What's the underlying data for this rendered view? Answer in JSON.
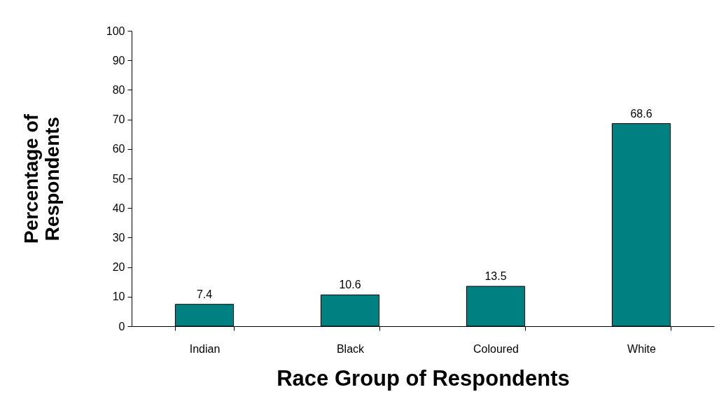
{
  "chart_data": {
    "type": "bar",
    "xlabel": "Race Group of Respondents",
    "ylabel": "Percentage of\nRespondents",
    "categories": [
      "Indian",
      "Black",
      "Coloured",
      "White"
    ],
    "values": [
      7.4,
      10.6,
      13.5,
      68.6
    ],
    "color": "#008080",
    "ylim": [
      0,
      100
    ],
    "yticks": [
      0,
      10,
      20,
      30,
      40,
      50,
      60,
      70,
      80,
      90,
      100
    ],
    "data_labels": true,
    "grid": false
  }
}
